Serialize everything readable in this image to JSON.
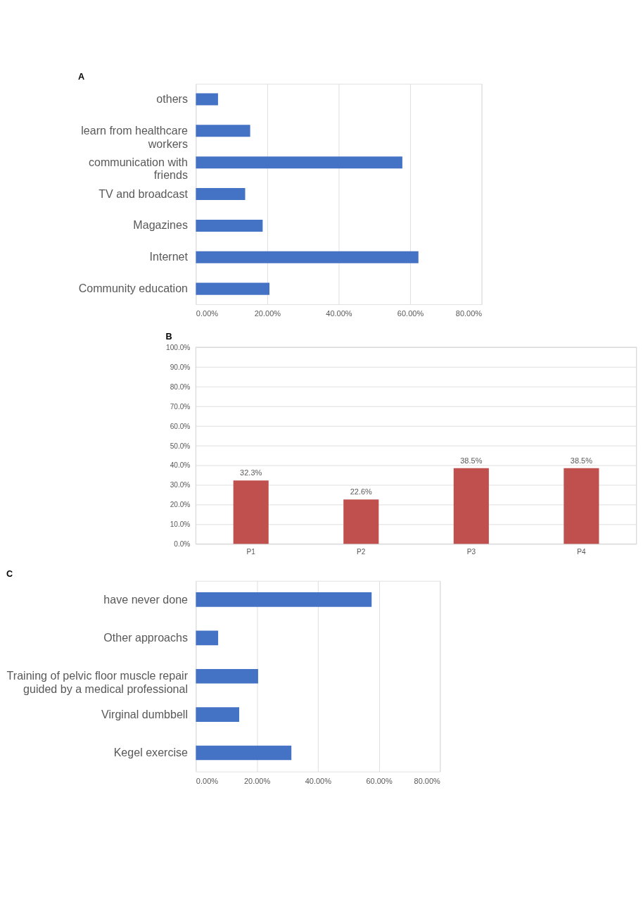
{
  "chart_data": [
    {
      "type": "bar",
      "title": "A",
      "orientation": "horizontal",
      "categories": [
        "others",
        "learn from healthcare workers",
        "communication with friends",
        "TV and broadcast",
        "Magazines",
        "Internet",
        "Community education"
      ],
      "values": [
        6.2,
        15.2,
        57.8,
        13.8,
        18.7,
        62.3,
        20.6
      ],
      "color": "#4472c4",
      "xlim": [
        0,
        80
      ],
      "xticks": [
        {
          "value": 0,
          "label": "0.00%"
        },
        {
          "value": 20,
          "label": "20.00%"
        },
        {
          "value": 40,
          "label": "40.00%"
        },
        {
          "value": 60,
          "label": "60.00%"
        },
        {
          "value": 80,
          "label": "80.00%"
        }
      ],
      "grid": "x"
    },
    {
      "type": "bar",
      "title": "B",
      "categories": [
        "P1",
        "P2",
        "P3",
        "P4"
      ],
      "values": [
        32.3,
        22.6,
        38.5,
        38.5
      ],
      "color": "#c0504d",
      "ylim": [
        0,
        100
      ],
      "yticks": [
        {
          "value": 0,
          "label": "0.0%"
        },
        {
          "value": 10,
          "label": "10.0%"
        },
        {
          "value": 20,
          "label": "20.0%"
        },
        {
          "value": 30,
          "label": "30.0%"
        },
        {
          "value": 40,
          "label": "40.0%"
        },
        {
          "value": 50,
          "label": "50.0%"
        },
        {
          "value": 60,
          "label": "60.0%"
        },
        {
          "value": 70,
          "label": "70.0%"
        },
        {
          "value": 80,
          "label": "80.0%"
        },
        {
          "value": 90,
          "label": "90.0%"
        },
        {
          "value": 100,
          "label": "100.0%"
        }
      ],
      "value_labels": [
        "32.3%",
        "22.6%",
        "38.5%",
        "38.5%"
      ],
      "grid": "y"
    },
    {
      "type": "bar",
      "title": "C",
      "orientation": "horizontal",
      "categories": [
        "have never done",
        "Other approachs",
        "Training of pelvic floor muscle repair guided by a medical professional",
        "Virginal dumbbell",
        "Kegel exercise"
      ],
      "values": [
        57.6,
        7.3,
        20.4,
        14.2,
        31.3
      ],
      "color": "#4472c4",
      "xlim": [
        0,
        80
      ],
      "xticks": [
        {
          "value": 0,
          "label": "0.00%"
        },
        {
          "value": 20,
          "label": "20.00%"
        },
        {
          "value": 40,
          "label": "40.00%"
        },
        {
          "value": 60,
          "label": "60.00%"
        },
        {
          "value": 80,
          "label": "80.00%"
        }
      ],
      "grid": "x"
    }
  ]
}
